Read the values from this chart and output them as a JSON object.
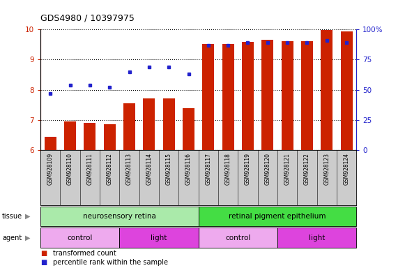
{
  "title": "GDS4980 / 10397975",
  "samples": [
    "GSM928109",
    "GSM928110",
    "GSM928111",
    "GSM928112",
    "GSM928113",
    "GSM928114",
    "GSM928115",
    "GSM928116",
    "GSM928117",
    "GSM928118",
    "GSM928119",
    "GSM928120",
    "GSM928121",
    "GSM928122",
    "GSM928123",
    "GSM928124"
  ],
  "red_values": [
    6.45,
    6.95,
    6.9,
    6.85,
    7.55,
    7.72,
    7.72,
    7.38,
    9.52,
    9.52,
    9.6,
    9.65,
    9.62,
    9.62,
    9.98,
    9.93
  ],
  "blue_values": [
    47,
    54,
    54,
    52,
    65,
    69,
    69,
    63,
    87,
    87,
    89,
    89,
    89,
    89,
    91,
    89
  ],
  "ylim_left": [
    6,
    10
  ],
  "ylim_right": [
    0,
    100
  ],
  "yticks_left": [
    6,
    7,
    8,
    9,
    10
  ],
  "yticks_right": [
    0,
    25,
    50,
    75,
    100
  ],
  "ytick_labels_right": [
    "0",
    "25",
    "50",
    "75",
    "100%"
  ],
  "bar_color": "#cc2200",
  "dot_color": "#2222cc",
  "tissue_labels": [
    "neurosensory retina",
    "retinal pigment epithelium"
  ],
  "tissue_color_left": "#aaeaaa",
  "tissue_color_right": "#44dd44",
  "agent_labels": [
    "control",
    "light",
    "control",
    "light"
  ],
  "agent_color_light": "#dd44dd",
  "agent_color_ctrl": "#eeaaee",
  "legend_items": [
    "transformed count",
    "percentile rank within the sample"
  ],
  "bg_color": "#cccccc",
  "plot_bg": "#ffffff",
  "bar_width": 0.6
}
